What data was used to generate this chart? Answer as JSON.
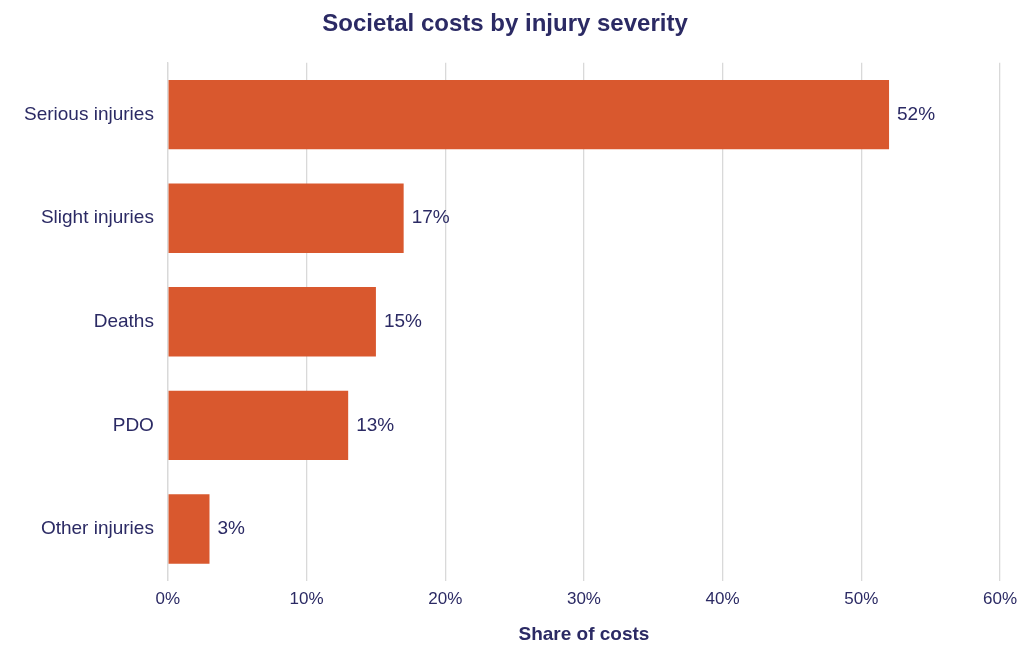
{
  "chart_data": {
    "type": "bar",
    "orientation": "horizontal",
    "title": "Societal costs by injury severity",
    "xlabel": "Share of costs",
    "categories": [
      "Serious injuries",
      "Slight injuries",
      "Deaths",
      "PDO",
      "Other injuries"
    ],
    "values": [
      52,
      17,
      15,
      13,
      3
    ],
    "color": "#d9582e",
    "value_labels": [
      "52%",
      "17%",
      "15%",
      "13%",
      "3%"
    ],
    "xlim": [
      0,
      60
    ],
    "xticks": [
      {
        "value": 0,
        "label": "0%"
      },
      {
        "value": 10,
        "label": "10%"
      },
      {
        "value": 20,
        "label": "20%"
      },
      {
        "value": 30,
        "label": "30%"
      },
      {
        "value": 40,
        "label": "40%"
      },
      {
        "value": 50,
        "label": "50%"
      },
      {
        "value": 60,
        "label": "60%"
      }
    ],
    "grid": "x",
    "legend": false
  }
}
